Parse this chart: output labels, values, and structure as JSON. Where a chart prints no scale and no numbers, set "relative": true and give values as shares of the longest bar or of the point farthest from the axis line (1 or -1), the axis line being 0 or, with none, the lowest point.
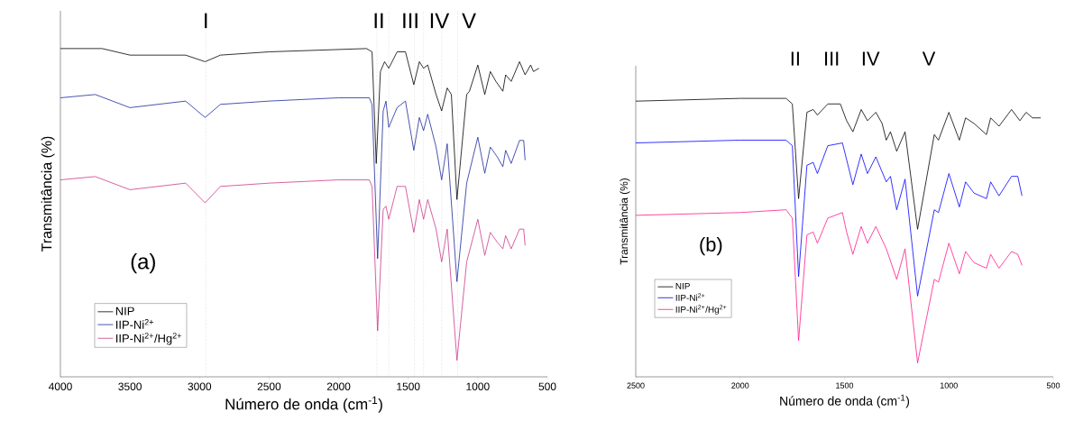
{
  "chart_data": [
    {
      "type": "line",
      "relative": true,
      "xlabel": "Número de onda (cm$^{-1}$)",
      "ylabel": "Transmitância (%)",
      "xlim": [
        4000,
        500
      ],
      "xticks": [
        4000,
        3500,
        3000,
        2500,
        2000,
        1500,
        1000,
        500
      ],
      "legend": "bottom left",
      "annotations": [
        {
          "text": "I",
          "x": 2955
        },
        {
          "text": "II",
          "x": 1712
        },
        {
          "text": "III",
          "x": 1485
        },
        {
          "text": "IV",
          "x": 1278
        },
        "V",
        "(a)"
      ],
      "ref_lines": [
        {
          "axis": "x",
          "value": 2955,
          "color": "#b0b0b0",
          "line_style": "dotted"
        },
        {
          "axis": "x",
          "value": 1725,
          "color": "#b0b0b0",
          "line_style": "dotted"
        },
        {
          "axis": "x",
          "value": 1640,
          "color": "#b0b0b0",
          "line_style": "dotted"
        },
        {
          "axis": "x",
          "value": 1455,
          "color": "#b0b0b0",
          "line_style": "dotted"
        },
        {
          "axis": "x",
          "value": 1390,
          "color": "#b0b0b0",
          "line_style": "dotted"
        },
        {
          "axis": "x",
          "value": 1260,
          "color": "#b0b0b0",
          "line_style": "dotted"
        },
        {
          "axis": "x",
          "value": 1145,
          "color": "#b0b0b0",
          "line_style": "dotted"
        }
      ],
      "series": [
        {
          "name": "NIP",
          "color": "#000000",
          "x": [
            4000,
            3700,
            3500,
            3100,
            2960,
            2850,
            2500,
            1800,
            1760,
            1730,
            1700,
            1670,
            1640,
            1580,
            1520,
            1460,
            1420,
            1390,
            1360,
            1300,
            1260,
            1220,
            1190,
            1150,
            1080,
            1060,
            1000,
            950,
            910,
            870,
            820,
            800,
            760,
            700,
            660,
            620,
            600,
            560
          ],
          "values": [
            1.0,
            1.0,
            0.98,
            0.98,
            0.96,
            0.98,
            0.99,
            1.0,
            0.99,
            0.65,
            0.93,
            0.96,
            0.94,
            0.99,
            0.99,
            0.89,
            0.96,
            0.94,
            0.95,
            0.86,
            0.81,
            0.88,
            0.86,
            0.54,
            0.86,
            0.87,
            0.95,
            0.86,
            0.93,
            0.9,
            0.87,
            0.92,
            0.9,
            0.96,
            0.92,
            0.95,
            0.93,
            0.94
          ]
        },
        {
          "name": "IIP-Ni$^{2+}$",
          "color": "#1c2a9c",
          "x": [
            4000,
            3750,
            3500,
            3100,
            2960,
            2850,
            2500,
            2000,
            1780,
            1760,
            1720,
            1680,
            1660,
            1640,
            1580,
            1520,
            1460,
            1420,
            1390,
            1360,
            1300,
            1260,
            1220,
            1150,
            1080,
            1000,
            950,
            910,
            860,
            820,
            800,
            760,
            700,
            670,
            660
          ],
          "values": [
            0.85,
            0.86,
            0.82,
            0.84,
            0.79,
            0.83,
            0.84,
            0.85,
            0.85,
            0.83,
            0.36,
            0.81,
            0.84,
            0.76,
            0.82,
            0.84,
            0.69,
            0.79,
            0.75,
            0.8,
            0.7,
            0.6,
            0.71,
            0.29,
            0.59,
            0.73,
            0.62,
            0.7,
            0.67,
            0.64,
            0.69,
            0.65,
            0.72,
            0.72,
            0.66
          ]
        },
        {
          "name": "IIP-Ni$^{2+}$/Hg$^{2+}$",
          "color": "#cc3a8a",
          "x": [
            4000,
            3750,
            3500,
            3100,
            2960,
            2850,
            2500,
            2000,
            1780,
            1760,
            1720,
            1680,
            1660,
            1640,
            1580,
            1520,
            1460,
            1420,
            1390,
            1360,
            1300,
            1260,
            1220,
            1150,
            1080,
            1000,
            950,
            910,
            860,
            820,
            800,
            760,
            700,
            670,
            660
          ],
          "values": [
            0.6,
            0.61,
            0.57,
            0.59,
            0.53,
            0.58,
            0.59,
            0.6,
            0.6,
            0.58,
            0.14,
            0.51,
            0.52,
            0.48,
            0.58,
            0.58,
            0.44,
            0.54,
            0.48,
            0.54,
            0.45,
            0.35,
            0.45,
            0.05,
            0.35,
            0.48,
            0.37,
            0.44,
            0.41,
            0.39,
            0.43,
            0.39,
            0.45,
            0.45,
            0.4
          ]
        }
      ]
    },
    {
      "type": "line",
      "relative": true,
      "xlabel": "Número de onda (cm$^{-1}$)",
      "ylabel": "Transmitância (%)",
      "xlim": [
        2500,
        500
      ],
      "xticks": [
        2500,
        2000,
        1500,
        1000,
        500
      ],
      "legend": "bottom left",
      "annotations": [
        "II",
        "III",
        "IV",
        "V",
        "(b)"
      ],
      "series": [
        {
          "name": "NIP",
          "color": "#000000",
          "x": [
            2500,
            2000,
            1780,
            1750,
            1720,
            1680,
            1650,
            1630,
            1580,
            1520,
            1490,
            1460,
            1420,
            1390,
            1350,
            1320,
            1300,
            1280,
            1250,
            1210,
            1150,
            1070,
            1050,
            1000,
            950,
            920,
            880,
            820,
            800,
            760,
            700,
            660,
            630,
            600,
            560
          ],
          "values": [
            0.99,
            1.0,
            1.0,
            0.98,
            0.64,
            0.95,
            0.96,
            0.94,
            0.98,
            0.98,
            0.92,
            0.88,
            0.96,
            0.92,
            0.95,
            0.91,
            0.85,
            0.88,
            0.81,
            0.88,
            0.53,
            0.87,
            0.85,
            0.95,
            0.85,
            0.93,
            0.91,
            0.87,
            0.93,
            0.9,
            0.96,
            0.92,
            0.95,
            0.93,
            0.93
          ]
        },
        {
          "name": "IIP-Ni$^{2+}$",
          "color": "#0000ff",
          "x": [
            2500,
            2000,
            1780,
            1750,
            1720,
            1680,
            1650,
            1630,
            1580,
            1510,
            1490,
            1460,
            1420,
            1390,
            1350,
            1300,
            1280,
            1250,
            1210,
            1150,
            1070,
            1050,
            1000,
            950,
            920,
            880,
            820,
            800,
            760,
            700,
            670,
            650
          ],
          "values": [
            0.84,
            0.85,
            0.85,
            0.83,
            0.36,
            0.76,
            0.77,
            0.73,
            0.83,
            0.84,
            0.78,
            0.69,
            0.8,
            0.73,
            0.79,
            0.7,
            0.72,
            0.6,
            0.71,
            0.29,
            0.6,
            0.59,
            0.73,
            0.61,
            0.7,
            0.66,
            0.64,
            0.7,
            0.65,
            0.72,
            0.72,
            0.65
          ]
        },
        {
          "name": "IIP-Ni$^{2+}$/Hg$^{2+}$",
          "color": "#ff1a8c",
          "x": [
            2500,
            2000,
            1780,
            1750,
            1720,
            1680,
            1650,
            1630,
            1580,
            1510,
            1490,
            1460,
            1420,
            1390,
            1350,
            1300,
            1250,
            1210,
            1150,
            1070,
            1050,
            1000,
            950,
            920,
            880,
            820,
            800,
            760,
            700,
            670,
            650
          ],
          "values": [
            0.58,
            0.59,
            0.6,
            0.57,
            0.13,
            0.51,
            0.52,
            0.48,
            0.57,
            0.59,
            0.52,
            0.44,
            0.54,
            0.48,
            0.54,
            0.46,
            0.35,
            0.46,
            0.05,
            0.35,
            0.34,
            0.48,
            0.37,
            0.45,
            0.41,
            0.39,
            0.44,
            0.39,
            0.45,
            0.44,
            0.4
          ]
        }
      ]
    }
  ]
}
